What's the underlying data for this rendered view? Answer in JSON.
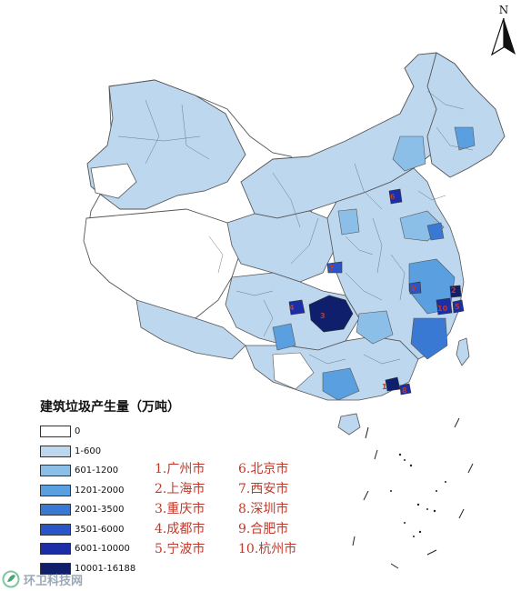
{
  "north_label": "N",
  "legend": {
    "title": "建筑垃圾产生量（万吨）",
    "bins": [
      {
        "label": "0",
        "color": "#ffffff"
      },
      {
        "label": "1-600",
        "color": "#bcd7ee"
      },
      {
        "label": "601-1200",
        "color": "#8cbfe8"
      },
      {
        "label": "1201-2000",
        "color": "#5a9fe0"
      },
      {
        "label": "2001-3500",
        "color": "#3a79d3"
      },
      {
        "label": "3501-6000",
        "color": "#2855c8"
      },
      {
        "label": "6001-10000",
        "color": "#1a2ea8"
      },
      {
        "label": "10001-16188",
        "color": "#0f1f6b"
      }
    ]
  },
  "cities": {
    "col1": [
      "1.广州市",
      "2.上海市",
      "3.重庆市",
      "4.成都市",
      "5.宁波市"
    ],
    "col2": [
      "6.北京市",
      "7.西安市",
      "8.深圳市",
      "9.合肥市",
      "10.杭州市"
    ]
  },
  "city_markers": [
    "1",
    "2",
    "3",
    "4",
    "5",
    "6",
    "7",
    "8",
    "9",
    "10"
  ],
  "colors": {
    "border": "#555555",
    "outline": "#333333",
    "label": "#c0392b"
  },
  "watermark": {
    "text": "环卫科技网"
  }
}
